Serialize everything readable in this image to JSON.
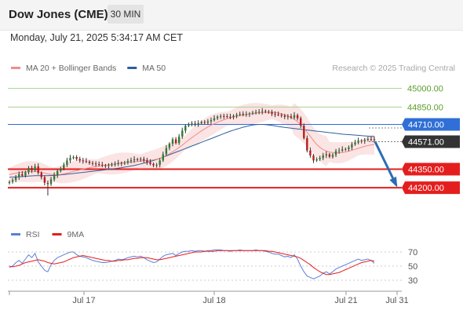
{
  "header": {
    "title": "Dow Jones (CME)",
    "timeframe": "30 MIN",
    "datetime": "Monday, July 21, 2025 5:34:17 AM CET"
  },
  "colors": {
    "candle_up": "#2e7d32",
    "candle_down": "#b71c1c",
    "ma20": "#f08c8c",
    "bollinger_fill": "#fbe1e1",
    "ma50": "#2f5e9e",
    "resistance_line": "#a9d18e",
    "resistance_text": "#5aa02c",
    "pivot_line": "#2f6fd6",
    "pivot_badge": "#2f6fd6",
    "support_line": "#e41e1e",
    "support_badge": "#e41e1e",
    "current_badge": "#333333",
    "arrow": "#2d6cb3",
    "rsi": "#5b7fd6",
    "rsi_ma": "#e41e1e"
  },
  "chart_data": [
    {
      "type": "candlestick",
      "legend": [
        {
          "key": "ma20",
          "label": "MA 20 + Bollinger Bands"
        },
        {
          "key": "ma50",
          "label": "MA 50"
        }
      ],
      "legend_position": "top-left",
      "watermark": "Research © 2025 Trading Central",
      "x_ticks": [
        "Jul 17",
        "Jul 18",
        "Jul 21",
        "Jul 31"
      ],
      "ylim": [
        44100,
        45080
      ],
      "levels": [
        {
          "value": 45000,
          "label": "45000.00",
          "kind": "resistance"
        },
        {
          "value": 44850,
          "label": "44850.00",
          "kind": "resistance"
        },
        {
          "value": 44710,
          "label": "44710.00",
          "kind": "pivot"
        },
        {
          "value": 44571,
          "label": "44571.00",
          "kind": "current"
        },
        {
          "value": 44350,
          "label": "44350.00",
          "kind": "support"
        },
        {
          "value": 44200,
          "label": "44200.00",
          "kind": "support"
        }
      ],
      "forecast_arrow": {
        "from": 44571,
        "to": 44220
      },
      "series": {
        "close": [
          44248,
          44262,
          44285,
          44310,
          44298,
          44325,
          44360,
          44340,
          44372,
          44320,
          44285,
          44240,
          44230,
          44268,
          44300,
          44335,
          44355,
          44385,
          44420,
          44440,
          44448,
          44432,
          44420,
          44415,
          44410,
          44400,
          44395,
          44390,
          44385,
          44380,
          44378,
          44382,
          44385,
          44392,
          44400,
          44395,
          44402,
          44415,
          44422,
          44430,
          44425,
          44432,
          44420,
          44405,
          44392,
          44380,
          44385,
          44420,
          44470,
          44520,
          44555,
          44590,
          44560,
          44612,
          44660,
          44700,
          44710,
          44718,
          44712,
          44720,
          44730,
          44725,
          44735,
          44745,
          44760,
          44772,
          44778,
          44775,
          44772,
          44768,
          44780,
          44788,
          44795,
          44790,
          44792,
          44798,
          44805,
          44810,
          44812,
          44818,
          44812,
          44810,
          44795,
          44790,
          44788,
          44780,
          44770,
          44775,
          44765,
          44785,
          44760,
          44700,
          44600,
          44500,
          44460,
          44420,
          44430,
          44440,
          44460,
          44470,
          44450,
          44465,
          44495,
          44500,
          44510,
          44512,
          44525,
          44550,
          44565,
          44580,
          44575,
          44585,
          44592,
          44590,
          44582
        ],
        "ma20": [
          44305,
          44312,
          44318,
          44322,
          44325,
          44328,
          44330,
          44330,
          44330,
          44328,
          44324,
          44318,
          44312,
          44308,
          44306,
          44306,
          44308,
          44312,
          44318,
          44325,
          44332,
          44338,
          44344,
          44350,
          44356,
          44361,
          44366,
          44371,
          44375,
          44379,
          44382,
          44385,
          44388,
          44392,
          44396,
          44399,
          44402,
          44405,
          44408,
          44410,
          44412,
          44415,
          44418,
          44420,
          44422,
          44425,
          44430,
          44438,
          44448,
          44460,
          44474,
          44490,
          44506,
          44524,
          44544,
          44564,
          44584,
          44604,
          44622,
          44640,
          44658,
          44674,
          44690,
          44704,
          44716,
          44728,
          44738,
          44748,
          44756,
          44763,
          44770,
          44776,
          44781,
          44786,
          44790,
          44794,
          44797,
          44800,
          44803,
          44805,
          44807,
          44808,
          44808,
          44806,
          44802,
          44796,
          44788,
          44778,
          44766,
          44752,
          44732,
          44708,
          44680,
          44648,
          44614,
          44580,
          44548,
          44525,
          44508,
          44496,
          44488,
          44484,
          44482,
          44482,
          44484,
          44488,
          44494,
          44502,
          44510,
          44518,
          44526,
          44534,
          44540,
          44545,
          44548
        ],
        "ma50": [
          44285,
          44286,
          44287,
          44288,
          44290,
          44292,
          44294,
          44296,
          44297,
          44297,
          44297,
          44297,
          44298,
          44299,
          44300,
          44302,
          44304,
          44306,
          44309,
          44312,
          44315,
          44318,
          44321,
          44324,
          44327,
          44330,
          44333,
          44336,
          44339,
          44342,
          44345,
          44348,
          44351,
          44354,
          44358,
          44362,
          44366,
          44370,
          44375,
          44380,
          44386,
          44392,
          44398,
          44405,
          44412,
          44420,
          44428,
          44437,
          44446,
          44456,
          44466,
          44476,
          44486,
          44496,
          44506,
          44516,
          44526,
          44536,
          44546,
          44556,
          44566,
          44576,
          44586,
          44596,
          44606,
          44616,
          44626,
          44636,
          44646,
          44656,
          44664,
          44672,
          44680,
          44688,
          44694,
          44700,
          44705,
          44708,
          44710,
          44710,
          44708,
          44706,
          44702,
          44698,
          44694,
          44690,
          44686,
          44683,
          44680,
          44677,
          44674,
          44671,
          44668,
          44665,
          44662,
          44659,
          44656,
          44653,
          44650,
          44647,
          44644,
          44641,
          44638,
          44635,
          44632,
          44630,
          44628,
          44626,
          44624,
          44622,
          44620,
          44618,
          44616,
          44614,
          44612
        ]
      }
    },
    {
      "type": "line",
      "legend": [
        {
          "key": "rsi",
          "label": "RSI"
        },
        {
          "key": "rsi_ma",
          "label": "9MA"
        }
      ],
      "ylim": [
        20,
        80
      ],
      "y_ticks": [
        70,
        50,
        30
      ],
      "series": {
        "rsi": [
          48,
          50,
          55,
          58,
          54,
          60,
          66,
          62,
          68,
          56,
          50,
          44,
          42,
          52,
          58,
          62,
          64,
          66,
          68,
          70,
          70,
          66,
          64,
          63,
          62,
          60,
          58,
          57,
          56,
          55,
          55,
          56,
          57,
          58,
          60,
          59,
          60,
          62,
          63,
          64,
          63,
          64,
          62,
          59,
          57,
          55,
          56,
          60,
          64,
          66,
          67,
          68,
          65,
          68,
          70,
          71,
          71,
          72,
          71,
          72,
          72,
          71,
          72,
          72,
          73,
          73,
          73,
          72,
          72,
          71,
          72,
          72,
          73,
          72,
          72,
          72,
          72,
          73,
          72,
          72,
          71,
          70,
          68,
          67,
          67,
          65,
          63,
          64,
          62,
          66,
          60,
          50,
          42,
          36,
          34,
          32,
          34,
          36,
          40,
          42,
          39,
          42,
          46,
          48,
          50,
          52,
          54,
          56,
          58,
          60,
          58,
          59,
          60,
          58,
          54
        ],
        "rsi_ma": [
          50,
          49,
          50,
          51,
          53,
          55,
          56,
          57,
          58,
          59,
          58,
          57,
          55,
          54,
          53,
          54,
          55,
          56,
          58,
          60,
          62,
          63,
          64,
          65,
          64,
          63,
          62,
          61,
          60,
          59,
          58,
          58,
          57,
          57,
          58,
          58,
          59,
          59,
          60,
          61,
          61,
          62,
          62,
          62,
          61,
          60,
          59,
          59,
          60,
          61,
          62,
          63,
          64,
          65,
          66,
          67,
          68,
          69,
          70,
          70,
          70,
          71,
          71,
          71,
          71,
          72,
          72,
          72,
          72,
          72,
          72,
          72,
          72,
          72,
          72,
          72,
          72,
          72,
          72,
          72,
          72,
          71,
          71,
          70,
          69,
          68,
          67,
          66,
          65,
          64,
          63,
          61,
          58,
          55,
          52,
          48,
          45,
          42,
          40,
          38,
          38,
          39,
          40,
          41,
          43,
          45,
          47,
          49,
          51,
          53,
          55,
          56,
          57,
          58,
          57
        ]
      }
    }
  ]
}
